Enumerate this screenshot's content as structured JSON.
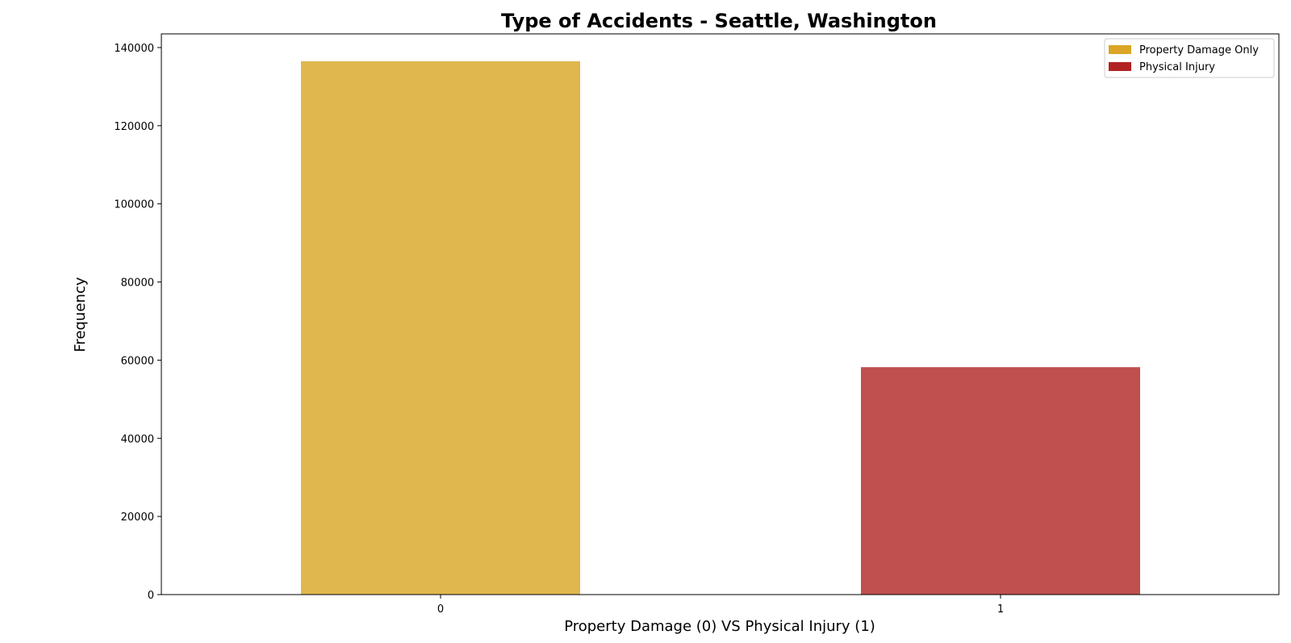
{
  "chart_data": {
    "type": "bar",
    "title": "Type of Accidents - Seattle, Washington",
    "xlabel": "Property Damage (0) VS Physical Injury (1)",
    "ylabel": "Frequency",
    "categories": [
      "0",
      "1"
    ],
    "values": [
      136500,
      58200
    ],
    "bar_colors": [
      "#e0b64e",
      "#c04f4f"
    ],
    "ylim": [
      0,
      143500
    ],
    "yticks": [
      0,
      20000,
      40000,
      60000,
      80000,
      100000,
      120000,
      140000
    ],
    "grid": false,
    "legend": {
      "placement": "upper-right",
      "entries": [
        {
          "label": "Property Damage Only",
          "color": "#dba626"
        },
        {
          "label": "Physical Injury",
          "color": "#b22222"
        }
      ]
    }
  }
}
